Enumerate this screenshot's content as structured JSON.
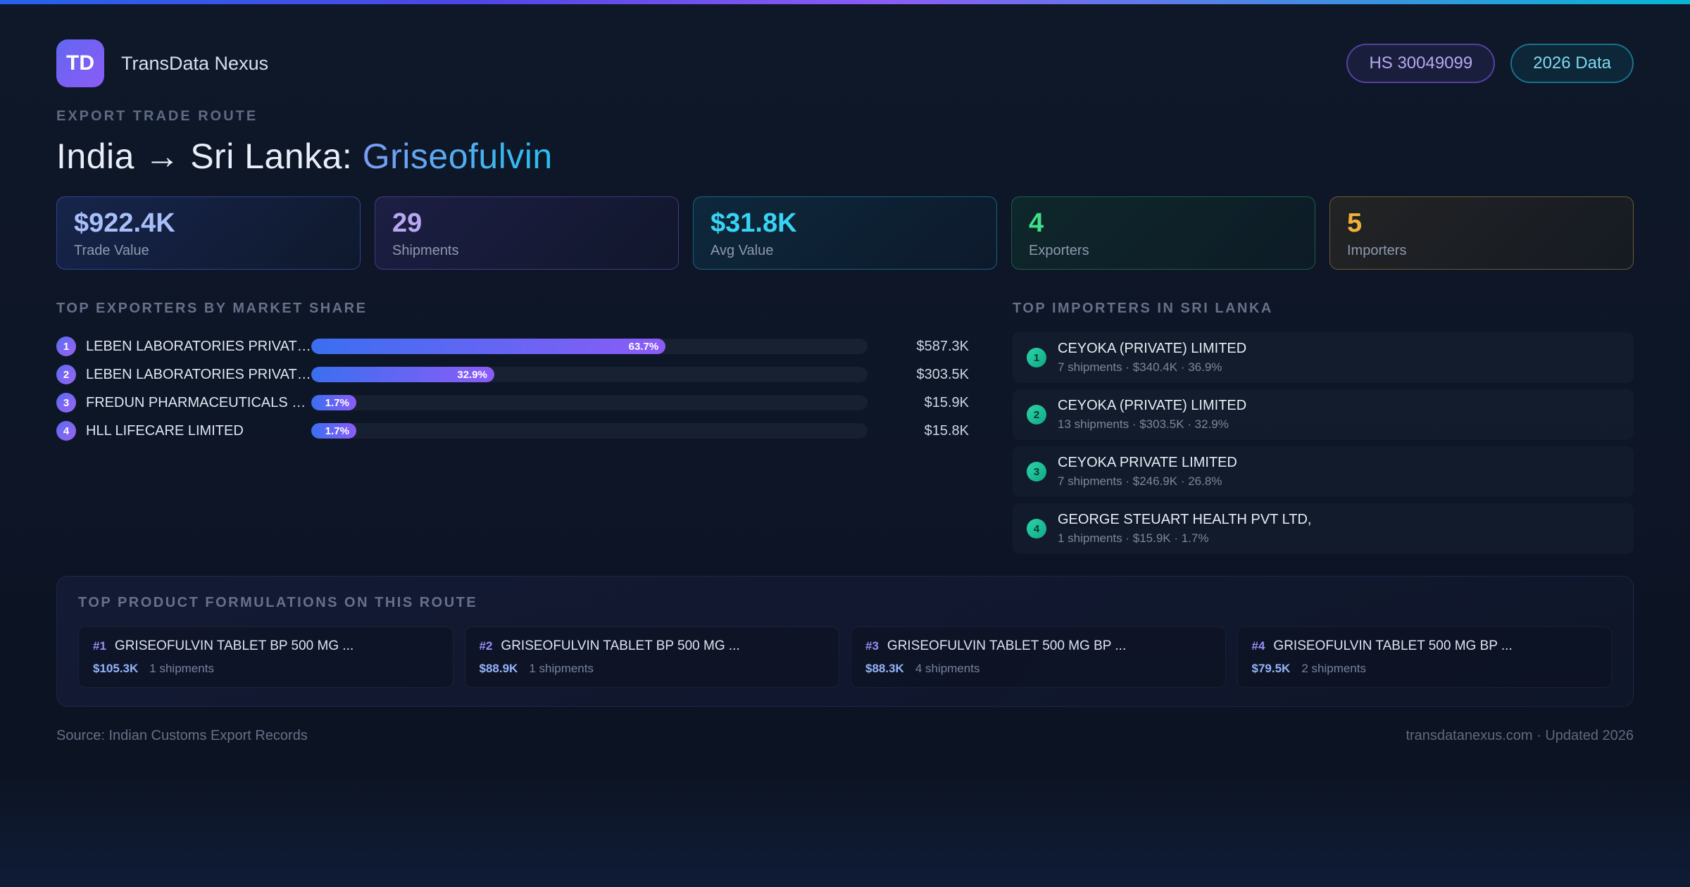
{
  "brand": {
    "logo": "TD",
    "name": "TransData Nexus"
  },
  "header_badges": {
    "hs_code": "HS 30049099",
    "year": "2026 Data"
  },
  "route_header": {
    "eyebrow": "EXPORT TRADE ROUTE",
    "title_prefix": "India → Sri Lanka: ",
    "title_highlight": "Griseofulvin"
  },
  "stats": [
    {
      "value": "$922.4K",
      "label": "Trade Value",
      "accent": "#a9bffa"
    },
    {
      "value": "29",
      "label": "Shipments",
      "accent": "#b7a8f2"
    },
    {
      "value": "$31.8K",
      "label": "Avg Value",
      "accent": "#38d4f5"
    },
    {
      "value": "4",
      "label": "Exporters",
      "accent": "#3fe086"
    },
    {
      "value": "5",
      "label": "Importers",
      "accent": "#f0b13a"
    }
  ],
  "exporters": {
    "title": "TOP EXPORTERS BY MARKET SHARE",
    "rows": [
      {
        "rank": "1",
        "name": "LEBEN LABORATORIES PRIVATE...",
        "share_pct": 63.7,
        "share_label": "63.7%",
        "value": "$587.3K"
      },
      {
        "rank": "2",
        "name": "LEBEN LABORATORIES PRIVATE...",
        "share_pct": 32.9,
        "share_label": "32.9%",
        "value": "$303.5K"
      },
      {
        "rank": "3",
        "name": "FREDUN PHARMACEUTICALS LTD",
        "share_pct": 1.7,
        "share_label": "1.7%",
        "value": "$15.9K"
      },
      {
        "rank": "4",
        "name": "HLL LIFECARE LIMITED",
        "share_pct": 1.7,
        "share_label": "1.7%",
        "value": "$15.8K"
      }
    ]
  },
  "importers": {
    "title": "TOP IMPORTERS IN SRI LANKA",
    "rows": [
      {
        "rank": "1",
        "name": "CEYOKA (PRIVATE) LIMITED",
        "meta": "7 shipments · $340.4K · 36.9%"
      },
      {
        "rank": "2",
        "name": "CEYOKA (PRIVATE) LIMITED",
        "meta": "13 shipments · $303.5K · 32.9%"
      },
      {
        "rank": "3",
        "name": "CEYOKA PRIVATE LIMITED",
        "meta": "7 shipments · $246.9K · 26.8%"
      },
      {
        "rank": "4",
        "name": "GEORGE STEUART HEALTH PVT LTD,",
        "meta": "1 shipments · $15.9K · 1.7%"
      }
    ]
  },
  "formulations": {
    "title": "TOP PRODUCT FORMULATIONS ON THIS ROUTE",
    "cards": [
      {
        "rank": "#1",
        "name": "GRISEOFULVIN TABLET BP 500 MG ...",
        "value": "$105.3K",
        "shipments": "1 shipments"
      },
      {
        "rank": "#2",
        "name": "GRISEOFULVIN TABLET BP 500 MG ...",
        "value": "$88.9K",
        "shipments": "1 shipments"
      },
      {
        "rank": "#3",
        "name": "GRISEOFULVIN TABLET 500 MG BP ...",
        "value": "$88.3K",
        "shipments": "4 shipments"
      },
      {
        "rank": "#4",
        "name": "GRISEOFULVIN TABLET 500 MG BP ...",
        "value": "$79.5K",
        "shipments": "2 shipments"
      }
    ]
  },
  "footer": {
    "source": "Source: Indian Customs Export Records",
    "site": "transdatanexus.com · Updated 2026"
  }
}
